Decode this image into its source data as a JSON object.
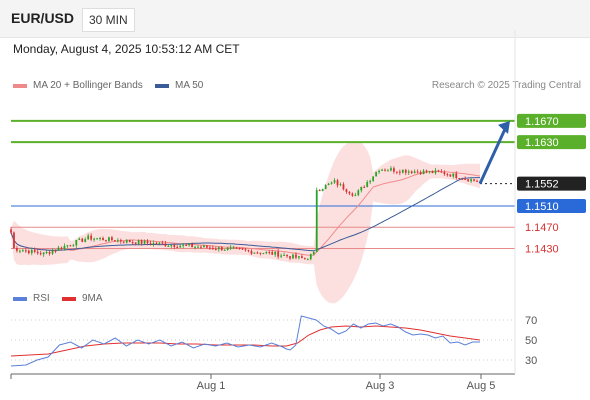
{
  "header": {
    "pair": "EUR/USD",
    "timeframe": "30 MIN"
  },
  "datetime": "Monday, August 4, 2025 10:53:12 AM CET",
  "legend": {
    "ma20": "MA 20 + Bollinger Bands",
    "ma50": "MA 50",
    "credit": "Research © 2025 Trading Central",
    "rsi": "RSI",
    "ma9": "9MA"
  },
  "colors": {
    "up": "#27a327",
    "down": "#d83030",
    "ma20": "#f08a8a",
    "ma50": "#3a5a98",
    "band": "#fbdada",
    "green_level": "#5ab02a",
    "blue_level": "#2a6ad8",
    "red_level": "#e88a8a",
    "current": "#222222",
    "arrow": "#2e5fa8",
    "rsi": "#5a80d8",
    "rsi_ma": "#e03030"
  },
  "chart_data": [
    {
      "type": "candlestick",
      "title": "EUR/USD 30 MIN",
      "ylim": [
        1.1365,
        1.1715
      ],
      "x_ticks": [
        "Aug 1",
        "Aug 3",
        "Aug 5"
      ],
      "levels": [
        {
          "value": 1.167,
          "label": "1.1670",
          "kind": "resistance"
        },
        {
          "value": 1.163,
          "label": "1.1630",
          "kind": "resistance"
        },
        {
          "value": 1.1552,
          "label": "1.1552",
          "kind": "current"
        },
        {
          "value": 1.151,
          "label": "1.1510",
          "kind": "pivot"
        },
        {
          "value": 1.147,
          "label": "1.1470",
          "kind": "support"
        },
        {
          "value": 1.143,
          "label": "1.1430",
          "kind": "support"
        }
      ],
      "arrow": {
        "from": 1.1552,
        "to": 1.167
      },
      "segments": [
        {
          "n": 2,
          "start": 1.149,
          "end": 1.143
        },
        {
          "n": 10,
          "start": 1.143,
          "end": 1.142
        },
        {
          "n": 15,
          "start": 1.142,
          "end": 1.145
        },
        {
          "n": 25,
          "start": 1.145,
          "end": 1.1438
        },
        {
          "n": 20,
          "start": 1.1438,
          "end": 1.143
        },
        {
          "n": 18,
          "start": 1.143,
          "end": 1.142
        },
        {
          "n": 10,
          "start": 1.142,
          "end": 1.141
        },
        {
          "n": 3,
          "start": 1.141,
          "end": 1.142
        },
        {
          "n": 1,
          "start": 1.142,
          "end": 1.154
        },
        {
          "n": 6,
          "start": 1.154,
          "end": 1.1555
        },
        {
          "n": 7,
          "start": 1.1555,
          "end": 1.153
        },
        {
          "n": 8,
          "start": 1.153,
          "end": 1.158
        },
        {
          "n": 12,
          "start": 1.158,
          "end": 1.1575
        },
        {
          "n": 10,
          "start": 1.1575,
          "end": 1.1572
        },
        {
          "n": 12,
          "start": 1.1572,
          "end": 1.1555
        }
      ]
    },
    {
      "type": "line",
      "title": "RSI",
      "ylim": [
        20,
        78
      ],
      "ticks": [
        70,
        50,
        30
      ],
      "series": [
        {
          "name": "RSI"
        },
        {
          "name": "9MA"
        }
      ],
      "rsi_points": [
        [
          0,
          24
        ],
        [
          8,
          25
        ],
        [
          14,
          30
        ],
        [
          20,
          33
        ],
        [
          26,
          45
        ],
        [
          32,
          48
        ],
        [
          38,
          42
        ],
        [
          44,
          50
        ],
        [
          50,
          46
        ],
        [
          56,
          52
        ],
        [
          62,
          44
        ],
        [
          68,
          50
        ],
        [
          74,
          46
        ],
        [
          80,
          50
        ],
        [
          86,
          44
        ],
        [
          92,
          48
        ],
        [
          98,
          42
        ],
        [
          104,
          46
        ],
        [
          110,
          44
        ],
        [
          116,
          47
        ],
        [
          122,
          43
        ],
        [
          128,
          45
        ],
        [
          134,
          43
        ],
        [
          140,
          47
        ],
        [
          146,
          43
        ],
        [
          148,
          41
        ],
        [
          150,
          40
        ],
        [
          153,
          45
        ],
        [
          156,
          74
        ],
        [
          160,
          72
        ],
        [
          164,
          70
        ],
        [
          168,
          64
        ],
        [
          172,
          61
        ],
        [
          176,
          56
        ],
        [
          180,
          59
        ],
        [
          184,
          66
        ],
        [
          188,
          62
        ],
        [
          192,
          66
        ],
        [
          196,
          67
        ],
        [
          200,
          64
        ],
        [
          204,
          66
        ],
        [
          208,
          63
        ],
        [
          212,
          58
        ],
        [
          216,
          55
        ],
        [
          220,
          56
        ],
        [
          224,
          55
        ],
        [
          228,
          52
        ],
        [
          232,
          54
        ],
        [
          236,
          47
        ],
        [
          240,
          48
        ],
        [
          244,
          45
        ],
        [
          248,
          48
        ],
        [
          252,
          48
        ]
      ],
      "ma_points": [
        [
          0,
          34
        ],
        [
          10,
          35
        ],
        [
          20,
          36
        ],
        [
          30,
          40
        ],
        [
          40,
          44
        ],
        [
          50,
          46
        ],
        [
          60,
          47
        ],
        [
          70,
          47
        ],
        [
          80,
          47
        ],
        [
          90,
          46
        ],
        [
          100,
          46
        ],
        [
          110,
          45
        ],
        [
          120,
          45
        ],
        [
          130,
          45
        ],
        [
          140,
          44
        ],
        [
          148,
          44
        ],
        [
          154,
          47
        ],
        [
          160,
          55
        ],
        [
          166,
          60
        ],
        [
          172,
          63
        ],
        [
          180,
          64
        ],
        [
          188,
          63
        ],
        [
          196,
          64
        ],
        [
          204,
          63
        ],
        [
          212,
          62
        ],
        [
          220,
          60
        ],
        [
          228,
          57
        ],
        [
          236,
          54
        ],
        [
          244,
          52
        ],
        [
          252,
          50
        ]
      ]
    }
  ]
}
